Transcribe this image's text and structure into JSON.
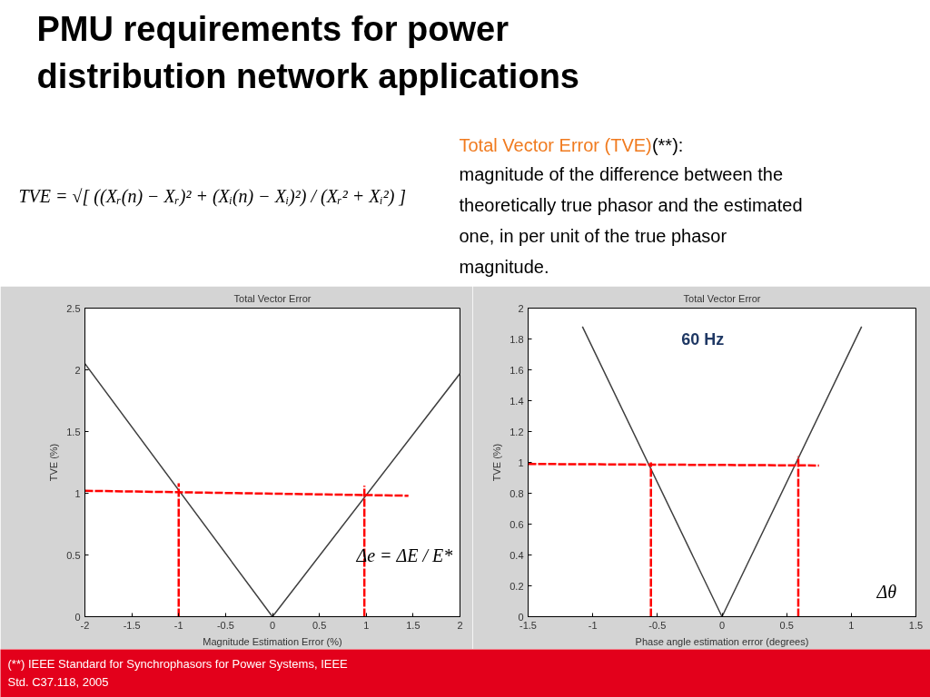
{
  "chart_data": [
    {
      "type": "other",
      "title": "PMU requirements for power distribution network applications",
      "annotations": [
        "Total Vector Error (TVE)",
        "(**):",
        "magnitude of the difference between the theoretically true phasor and the estimated one, in per unit of the true phasor magnitude.",
        "TVE = √[ ((Xᵣ(n) − Xᵣ)² + (Xᵢ(n) − Xᵢ)²) / (Xᵣ² + Xᵢ²) ]",
        "(**) IEEE Standard for Synchrophasors for Power Systems, IEEE Std. C37.118, 2005"
      ]
    },
    {
      "type": "line",
      "title": "Total Vector Error",
      "xlabel": "Magnitude Estimation Error (%)",
      "ylabel": "TVE (%)",
      "xlim": [
        -2,
        2
      ],
      "ylim": [
        0,
        2.5
      ],
      "xticks": [
        -2,
        -1.5,
        -1,
        -0.5,
        0,
        0.5,
        1,
        1.5,
        2
      ],
      "yticks": [
        0,
        0.5,
        1,
        1.5,
        2,
        2.5
      ],
      "annotations": [
        "Δe = ΔE / E*"
      ],
      "series": [
        {
          "color": "#404040",
          "line_style": "solid",
          "x": [
            -2,
            0,
            2
          ],
          "values": [
            2.05,
            0,
            1.97
          ]
        },
        {
          "color": "#ff0000",
          "line_style": "dashed",
          "x": [
            -2,
            1.45
          ],
          "values": [
            1.02,
            0.98
          ]
        },
        {
          "color": "#ff0000",
          "line_style": "dashed",
          "x": [
            -1,
            -1
          ],
          "values": [
            0,
            1.08
          ]
        },
        {
          "color": "#ff0000",
          "line_style": "dashed",
          "x": [
            0.98,
            0.98
          ],
          "values": [
            0,
            1.06
          ]
        }
      ]
    },
    {
      "type": "line",
      "title": "Total Vector Error",
      "xlabel": "Phase angle estimation error (degrees)",
      "ylabel": "TVE (%)",
      "xlim": [
        -1.5,
        1.5
      ],
      "ylim": [
        0,
        2
      ],
      "xticks": [
        -1.5,
        -1,
        -0.5,
        0,
        0.5,
        1,
        1.5
      ],
      "yticks": [
        0,
        0.2,
        0.4,
        0.6,
        0.8,
        1,
        1.2,
        1.4,
        1.6,
        1.8,
        2
      ],
      "annotations": [
        "60 Hz",
        "Δθ"
      ],
      "series": [
        {
          "color": "#404040",
          "line_style": "solid",
          "x": [
            -1.08,
            0,
            1.08
          ],
          "values": [
            1.88,
            0,
            1.88
          ]
        },
        {
          "color": "#ff0000",
          "line_style": "dashed",
          "x": [
            -1.5,
            0.75
          ],
          "values": [
            0.99,
            0.98
          ]
        },
        {
          "color": "#ff0000",
          "line_style": "dashed",
          "x": [
            -0.55,
            -0.55
          ],
          "values": [
            0,
            1.0
          ]
        },
        {
          "color": "#ff0000",
          "line_style": "dashed",
          "x": [
            0.59,
            0.59
          ],
          "values": [
            0,
            1.04
          ]
        }
      ]
    }
  ]
}
